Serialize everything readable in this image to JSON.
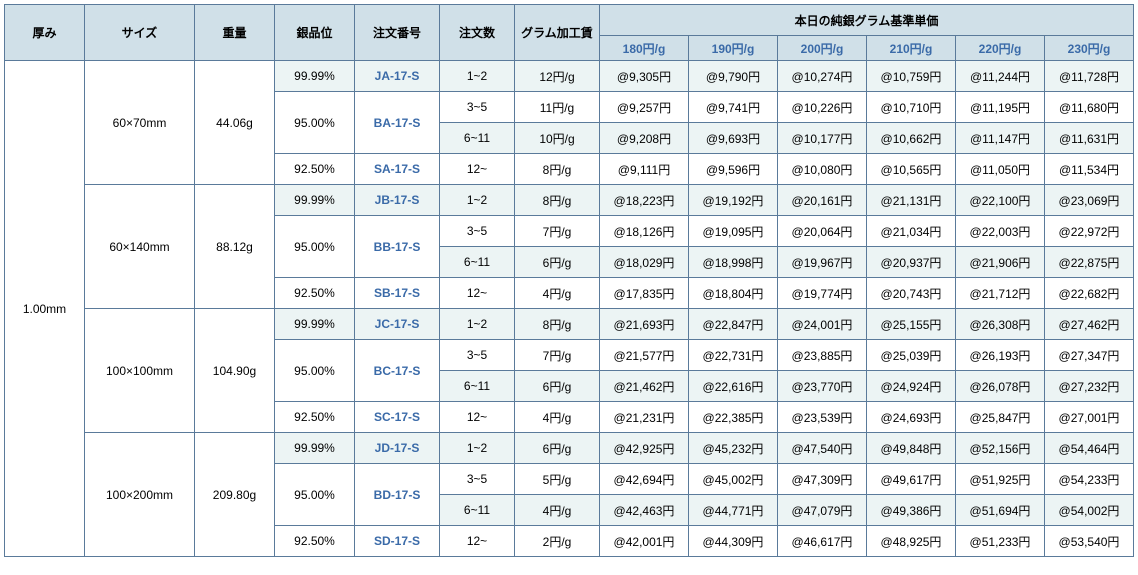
{
  "headers": {
    "thickness": "厚み",
    "size": "サイズ",
    "weight": "重量",
    "purity": "銀品位",
    "order_no": "注文番号",
    "qty": "注文数",
    "proc_fee": "グラム加工賃",
    "price_group": "本日の純銀グラム基準単価",
    "price_cols": [
      "180円/g",
      "190円/g",
      "200円/g",
      "210円/g",
      "220円/g",
      "230円/g"
    ]
  },
  "thickness_value": "1.00mm",
  "groups": [
    {
      "size": "60×70mm",
      "weight": "44.06g",
      "purities": [
        "99.99%",
        "95.00%",
        "92.50%"
      ],
      "orders": [
        "JA-17-S",
        "BA-17-S",
        "SA-17-S"
      ],
      "rows": [
        {
          "qty": "1~2",
          "proc": "12円/g",
          "prices": [
            "@9,305円",
            "@9,790円",
            "@10,274円",
            "@10,759円",
            "@11,244円",
            "@11,728円"
          ]
        },
        {
          "qty": "3~5",
          "proc": "11円/g",
          "prices": [
            "@9,257円",
            "@9,741円",
            "@10,226円",
            "@10,710円",
            "@11,195円",
            "@11,680円"
          ]
        },
        {
          "qty": "6~11",
          "proc": "10円/g",
          "prices": [
            "@9,208円",
            "@9,693円",
            "@10,177円",
            "@10,662円",
            "@11,147円",
            "@11,631円"
          ]
        },
        {
          "qty": "12~",
          "proc": "8円/g",
          "prices": [
            "@9,111円",
            "@9,596円",
            "@10,080円",
            "@10,565円",
            "@11,050円",
            "@11,534円"
          ]
        }
      ]
    },
    {
      "size": "60×140mm",
      "weight": "88.12g",
      "purities": [
        "99.99%",
        "95.00%",
        "92.50%"
      ],
      "orders": [
        "JB-17-S",
        "BB-17-S",
        "SB-17-S"
      ],
      "rows": [
        {
          "qty": "1~2",
          "proc": "8円/g",
          "prices": [
            "@18,223円",
            "@19,192円",
            "@20,161円",
            "@21,131円",
            "@22,100円",
            "@23,069円"
          ]
        },
        {
          "qty": "3~5",
          "proc": "7円/g",
          "prices": [
            "@18,126円",
            "@19,095円",
            "@20,064円",
            "@21,034円",
            "@22,003円",
            "@22,972円"
          ]
        },
        {
          "qty": "6~11",
          "proc": "6円/g",
          "prices": [
            "@18,029円",
            "@18,998円",
            "@19,967円",
            "@20,937円",
            "@21,906円",
            "@22,875円"
          ]
        },
        {
          "qty": "12~",
          "proc": "4円/g",
          "prices": [
            "@17,835円",
            "@18,804円",
            "@19,774円",
            "@20,743円",
            "@21,712円",
            "@22,682円"
          ]
        }
      ]
    },
    {
      "size": "100×100mm",
      "weight": "104.90g",
      "purities": [
        "99.99%",
        "95.00%",
        "92.50%"
      ],
      "orders": [
        "JC-17-S",
        "BC-17-S",
        "SC-17-S"
      ],
      "rows": [
        {
          "qty": "1~2",
          "proc": "8円/g",
          "prices": [
            "@21,693円",
            "@22,847円",
            "@24,001円",
            "@25,155円",
            "@26,308円",
            "@27,462円"
          ]
        },
        {
          "qty": "3~5",
          "proc": "7円/g",
          "prices": [
            "@21,577円",
            "@22,731円",
            "@23,885円",
            "@25,039円",
            "@26,193円",
            "@27,347円"
          ]
        },
        {
          "qty": "6~11",
          "proc": "6円/g",
          "prices": [
            "@21,462円",
            "@22,616円",
            "@23,770円",
            "@24,924円",
            "@26,078円",
            "@27,232円"
          ]
        },
        {
          "qty": "12~",
          "proc": "4円/g",
          "prices": [
            "@21,231円",
            "@22,385円",
            "@23,539円",
            "@24,693円",
            "@25,847円",
            "@27,001円"
          ]
        }
      ]
    },
    {
      "size": "100×200mm",
      "weight": "209.80g",
      "purities": [
        "99.99%",
        "95.00%",
        "92.50%"
      ],
      "orders": [
        "JD-17-S",
        "BD-17-S",
        "SD-17-S"
      ],
      "rows": [
        {
          "qty": "1~2",
          "proc": "6円/g",
          "prices": [
            "@42,925円",
            "@45,232円",
            "@47,540円",
            "@49,848円",
            "@52,156円",
            "@54,464円"
          ]
        },
        {
          "qty": "3~5",
          "proc": "5円/g",
          "prices": [
            "@42,694円",
            "@45,002円",
            "@47,309円",
            "@49,617円",
            "@51,925円",
            "@54,233円"
          ]
        },
        {
          "qty": "6~11",
          "proc": "4円/g",
          "prices": [
            "@42,463円",
            "@44,771円",
            "@47,079円",
            "@49,386円",
            "@51,694円",
            "@54,002円"
          ]
        },
        {
          "qty": "12~",
          "proc": "2円/g",
          "prices": [
            "@42,001円",
            "@44,309円",
            "@46,617円",
            "@48,925円",
            "@51,233円",
            "@53,540円"
          ]
        }
      ]
    }
  ]
}
